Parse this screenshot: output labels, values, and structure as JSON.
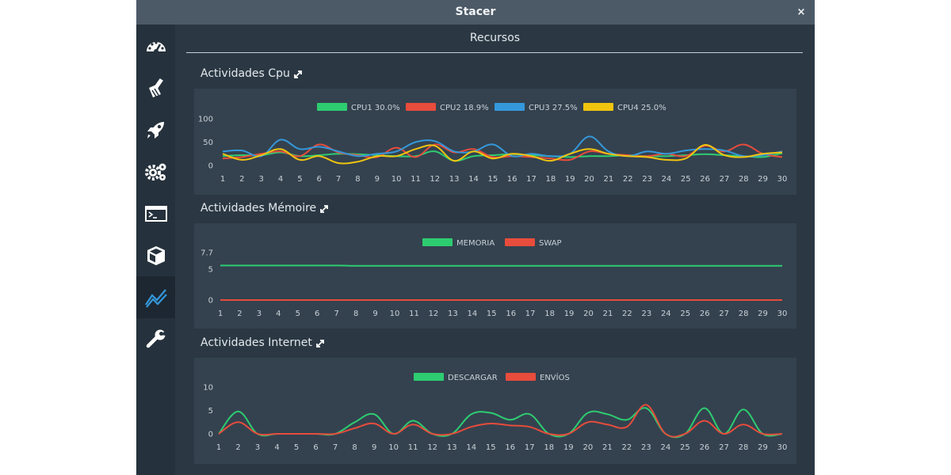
{
  "window": {
    "title": "Stacer",
    "close_glyph": "×"
  },
  "sidebar": {
    "items": [
      {
        "icon": "dashboard-icon",
        "active": false
      },
      {
        "icon": "broom-icon",
        "active": false
      },
      {
        "icon": "rocket-icon",
        "active": false
      },
      {
        "icon": "gears-icon",
        "active": false
      },
      {
        "icon": "terminal-icon",
        "active": false
      },
      {
        "icon": "package-icon",
        "active": false
      },
      {
        "icon": "chart-line-icon",
        "active": true
      },
      {
        "icon": "wrench-icon",
        "active": false
      }
    ]
  },
  "page": {
    "title": "Recursos"
  },
  "sections": [
    {
      "title": "Actividades Cpu",
      "expand_icon": "expand-icon"
    },
    {
      "title": "Actividades Mémoire",
      "expand_icon": "expand-icon"
    },
    {
      "title": "Actividades Internet",
      "expand_icon": "expand-icon"
    }
  ],
  "colors": {
    "green": "#2ecc71",
    "red": "#e74c3c",
    "blue": "#3498db",
    "yellow": "#f1c40f"
  },
  "chart_data": [
    {
      "type": "line",
      "title": "",
      "x": [
        1,
        2,
        3,
        4,
        5,
        6,
        7,
        8,
        9,
        10,
        11,
        12,
        13,
        14,
        15,
        16,
        17,
        18,
        19,
        20,
        21,
        22,
        23,
        24,
        25,
        26,
        27,
        28,
        29,
        30
      ],
      "ylim": [
        0,
        100
      ],
      "yticks": [
        100,
        50,
        0
      ],
      "grid": false,
      "legend_position": "top-center",
      "series": [
        {
          "name": "CPU1 30.0%",
          "color": "#2ecc71",
          "values": [
            20,
            22,
            22,
            28,
            20,
            22,
            25,
            24,
            22,
            20,
            20,
            30,
            10,
            20,
            22,
            24,
            22,
            20,
            18,
            20,
            20,
            22,
            20,
            20,
            22,
            24,
            22,
            20,
            18,
            26
          ]
        },
        {
          "name": "CPU2 18.9%",
          "color": "#e74c3c",
          "values": [
            15,
            18,
            25,
            30,
            20,
            45,
            28,
            22,
            18,
            38,
            18,
            45,
            28,
            35,
            18,
            20,
            18,
            15,
            12,
            30,
            25,
            22,
            20,
            25,
            20,
            42,
            30,
            45,
            25,
            18
          ]
        },
        {
          "name": "CPU3 27.5%",
          "color": "#3498db",
          "values": [
            30,
            32,
            20,
            55,
            35,
            40,
            30,
            20,
            25,
            30,
            50,
            52,
            30,
            30,
            45,
            20,
            25,
            20,
            25,
            62,
            30,
            20,
            30,
            25,
            32,
            35,
            32,
            20,
            22,
            30
          ]
        },
        {
          "name": "CPU4 25.0%",
          "color": "#f1c40f",
          "values": [
            25,
            12,
            22,
            35,
            12,
            20,
            5,
            8,
            20,
            20,
            35,
            42,
            10,
            30,
            15,
            25,
            20,
            10,
            25,
            35,
            25,
            20,
            18,
            12,
            15,
            44,
            22,
            18,
            25,
            28
          ]
        }
      ]
    },
    {
      "type": "line",
      "title": "",
      "x": [
        1,
        2,
        3,
        4,
        5,
        6,
        7,
        8,
        9,
        10,
        11,
        12,
        13,
        14,
        15,
        16,
        17,
        18,
        19,
        20,
        21,
        22,
        23,
        24,
        25,
        26,
        27,
        28,
        29,
        30
      ],
      "ylim": [
        0,
        7.7
      ],
      "yticks": [
        "7.7",
        "5",
        "0"
      ],
      "grid": false,
      "legend_position": "top-center",
      "series": [
        {
          "name": "MEMORIA",
          "color": "#2ecc71",
          "values": [
            5.6,
            5.6,
            5.6,
            5.6,
            5.6,
            5.6,
            5.6,
            5.55,
            5.55,
            5.55,
            5.55,
            5.55,
            5.55,
            5.55,
            5.55,
            5.55,
            5.55,
            5.55,
            5.55,
            5.55,
            5.55,
            5.55,
            5.55,
            5.55,
            5.55,
            5.55,
            5.55,
            5.55,
            5.55,
            5.55
          ]
        },
        {
          "name": "SWAP",
          "color": "#e74c3c",
          "values": [
            0,
            0,
            0,
            0,
            0,
            0,
            0,
            0,
            0,
            0,
            0,
            0,
            0,
            0,
            0,
            0,
            0,
            0,
            0,
            0,
            0,
            0,
            0,
            0,
            0,
            0,
            0,
            0,
            0,
            0
          ]
        }
      ]
    },
    {
      "type": "line",
      "title": "",
      "x": [
        1,
        2,
        3,
        4,
        5,
        6,
        7,
        8,
        9,
        10,
        11,
        12,
        13,
        14,
        15,
        16,
        17,
        18,
        19,
        20,
        21,
        22,
        23,
        24,
        25,
        26,
        27,
        28,
        29,
        30
      ],
      "ylim": [
        0,
        10
      ],
      "yticks": [
        10,
        5,
        0
      ],
      "grid": false,
      "legend_position": "top-center",
      "series": [
        {
          "name": "DESCARGAR",
          "color": "#2ecc71",
          "values": [
            0,
            4.8,
            0,
            0,
            0,
            0,
            0,
            2.5,
            4.2,
            0,
            2.8,
            0,
            0,
            4.2,
            4.5,
            3.0,
            4.2,
            0,
            0,
            4.5,
            4.2,
            3.0,
            5.5,
            0,
            0,
            5.5,
            0,
            5.2,
            0,
            0
          ]
        },
        {
          "name": "ENVÍOS",
          "color": "#e74c3c",
          "values": [
            0,
            2.5,
            0,
            0,
            0,
            0,
            0,
            1.2,
            2.2,
            0,
            2.0,
            0,
            0,
            1.5,
            2.2,
            1.8,
            1.5,
            0,
            0,
            2.5,
            2.0,
            1.5,
            6.2,
            0,
            0,
            2.8,
            0,
            2.0,
            0,
            0
          ]
        }
      ]
    }
  ]
}
